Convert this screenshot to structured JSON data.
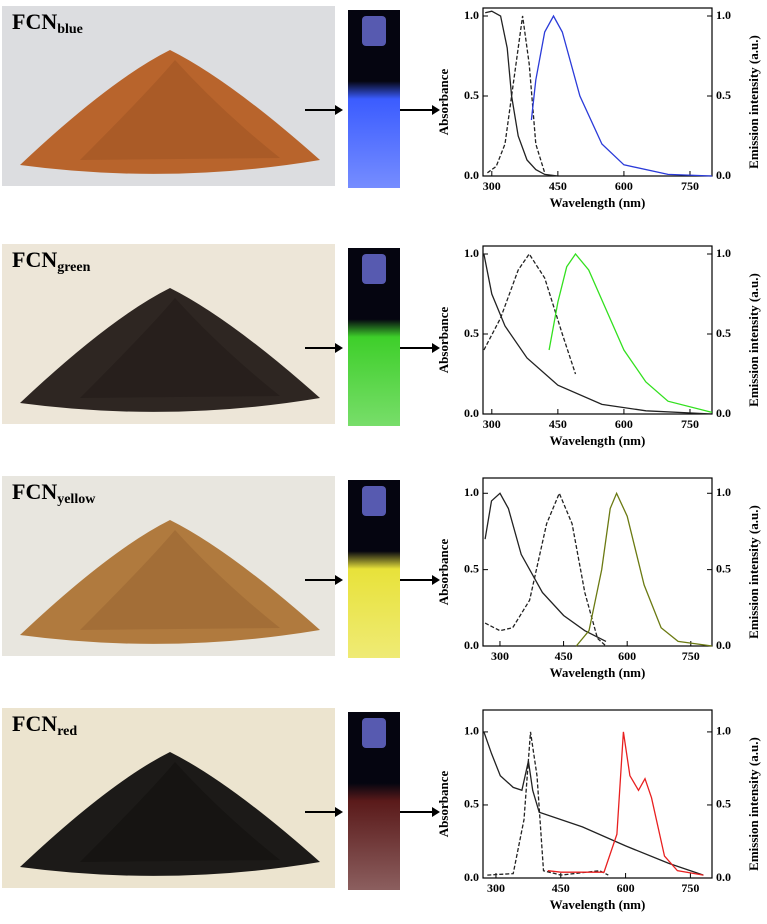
{
  "chart_data": [
    {
      "type": "line",
      "label_main": "FCN",
      "label_sub": "blue",
      "xlabel": "Wavelength (nm)",
      "ylabel": "Absorbance",
      "y2label": "Emission intensity (a.u.)",
      "xlim": [
        280,
        800
      ],
      "xticks": [
        300,
        450,
        600,
        750
      ],
      "ylim": [
        0,
        1.05
      ],
      "yticks": [
        {
          "value": 0,
          "label": "0.0"
        },
        {
          "value": 0.5,
          "label": "0.5"
        },
        {
          "value": 1,
          "label": "1.0"
        }
      ],
      "y2lim": [
        0,
        1.05
      ],
      "y2ticks": [
        {
          "value": 0,
          "label": "0.0"
        },
        {
          "value": 0.5,
          "label": "0.5"
        },
        {
          "value": 1,
          "label": "1.0"
        }
      ],
      "series": [
        {
          "color": "#222222",
          "dash": false,
          "x": [
            285,
            300,
            320,
            335,
            345,
            360,
            380,
            400,
            420,
            450
          ],
          "values": [
            1.02,
            1.03,
            1.0,
            0.8,
            0.5,
            0.25,
            0.1,
            0.04,
            0.01,
            0
          ]
        },
        {
          "color": "#222222",
          "dash": true,
          "axis": "y2",
          "x": [
            290,
            310,
            330,
            350,
            370,
            385,
            400,
            420
          ],
          "values": [
            0.02,
            0.06,
            0.2,
            0.6,
            1.0,
            0.7,
            0.2,
            0.02
          ]
        },
        {
          "color": "#2b3bd9",
          "dash": false,
          "axis": "y2",
          "x": [
            390,
            400,
            420,
            440,
            460,
            500,
            550,
            600,
            700,
            800
          ],
          "values": [
            0.35,
            0.6,
            0.9,
            1.0,
            0.9,
            0.5,
            0.2,
            0.07,
            0.01,
            0
          ]
        }
      ]
    },
    {
      "type": "line",
      "label_main": "FCN",
      "label_sub": "green",
      "xlabel": "Wavelength (nm)",
      "ylabel": "Absorbance",
      "y2label": "Emission intensity (a.u.)",
      "xlim": [
        280,
        800
      ],
      "xticks": [
        300,
        450,
        600,
        750
      ],
      "ylim": [
        0,
        1.05
      ],
      "yticks": [
        {
          "value": 0,
          "label": "0.0"
        },
        {
          "value": 0.5,
          "label": "0.5"
        },
        {
          "value": 1,
          "label": "1.0"
        }
      ],
      "y2lim": [
        0,
        1.05
      ],
      "y2ticks": [
        {
          "value": 0,
          "label": "0.0"
        },
        {
          "value": 0.5,
          "label": "0.5"
        },
        {
          "value": 1,
          "label": "1.0"
        }
      ],
      "series": [
        {
          "color": "#222222",
          "dash": false,
          "x": [
            282,
            300,
            330,
            380,
            450,
            550,
            650,
            800
          ],
          "values": [
            1.0,
            0.75,
            0.55,
            0.35,
            0.18,
            0.06,
            0.02,
            0
          ]
        },
        {
          "color": "#222222",
          "dash": true,
          "axis": "y2",
          "x": [
            282,
            320,
            360,
            385,
            420,
            460,
            490
          ],
          "values": [
            0.4,
            0.6,
            0.9,
            1.0,
            0.85,
            0.5,
            0.25
          ]
        },
        {
          "color": "#33e01f",
          "dash": false,
          "axis": "y2",
          "x": [
            430,
            450,
            470,
            490,
            520,
            560,
            600,
            650,
            700,
            800
          ],
          "values": [
            0.4,
            0.7,
            0.92,
            1.0,
            0.9,
            0.65,
            0.4,
            0.2,
            0.08,
            0.01
          ]
        }
      ]
    },
    {
      "type": "line",
      "label_main": "FCN",
      "label_sub": "yellow",
      "xlabel": "Wavelength (nm)",
      "ylabel": "Absorbance",
      "y2label": "Emission intensity (a.u.)",
      "xlim": [
        260,
        800
      ],
      "xticks": [
        300,
        450,
        600,
        750
      ],
      "ylim": [
        0,
        1.1
      ],
      "yticks": [
        {
          "value": 0,
          "label": "0.0"
        },
        {
          "value": 0.5,
          "label": "0.5"
        },
        {
          "value": 1,
          "label": "1.0"
        }
      ],
      "y2lim": [
        0,
        1.1
      ],
      "y2ticks": [
        {
          "value": 0,
          "label": "0.0"
        },
        {
          "value": 0.5,
          "label": "0.5"
        },
        {
          "value": 1,
          "label": "1.0"
        }
      ],
      "series": [
        {
          "color": "#222222",
          "dash": false,
          "x": [
            265,
            280,
            300,
            320,
            350,
            400,
            450,
            500,
            550
          ],
          "values": [
            0.7,
            0.95,
            1.0,
            0.9,
            0.6,
            0.35,
            0.2,
            0.1,
            0.03
          ]
        },
        {
          "color": "#222222",
          "dash": true,
          "axis": "y2",
          "x": [
            265,
            300,
            330,
            370,
            410,
            440,
            470,
            500,
            530,
            550
          ],
          "values": [
            0.15,
            0.1,
            0.12,
            0.3,
            0.8,
            1.0,
            0.8,
            0.35,
            0.05,
            0
          ]
        },
        {
          "color": "#6b7a12",
          "dash": false,
          "axis": "y2",
          "x": [
            480,
            510,
            540,
            560,
            575,
            600,
            640,
            680,
            720,
            800
          ],
          "values": [
            0,
            0.1,
            0.5,
            0.9,
            1.0,
            0.85,
            0.4,
            0.12,
            0.03,
            0
          ]
        }
      ]
    },
    {
      "type": "line",
      "label_main": "FCN",
      "label_sub": "red",
      "xlabel": "Wavelength (nm)",
      "ylabel": "Absorbance",
      "y2label": "Emission intensity (a.u.)",
      "xlim": [
        270,
        800
      ],
      "xticks": [
        300,
        450,
        600,
        750
      ],
      "ylim": [
        0,
        1.15
      ],
      "yticks": [
        {
          "value": 0,
          "label": "0.0"
        },
        {
          "value": 0.5,
          "label": "0.5"
        },
        {
          "value": 1,
          "label": "1.0"
        }
      ],
      "y2lim": [
        0,
        1.15
      ],
      "y2ticks": [
        {
          "value": 0,
          "label": "0.0"
        },
        {
          "value": 0.5,
          "label": "0.5"
        },
        {
          "value": 1,
          "label": "1.0"
        }
      ],
      "series": [
        {
          "color": "#222222",
          "dash": false,
          "x": [
            272,
            290,
            310,
            340,
            360,
            375,
            385,
            400,
            500,
            600,
            700,
            780
          ],
          "values": [
            1.0,
            0.85,
            0.7,
            0.62,
            0.6,
            0.8,
            0.6,
            0.45,
            0.35,
            0.22,
            0.1,
            0.02
          ]
        },
        {
          "color": "#222222",
          "dash": true,
          "axis": "y2",
          "x": [
            280,
            340,
            365,
            380,
            395,
            410,
            450,
            540,
            560
          ],
          "values": [
            0.02,
            0.03,
            0.4,
            1.0,
            0.7,
            0.05,
            0.02,
            0.05,
            0.02
          ]
        },
        {
          "color": "#e82020",
          "dash": false,
          "axis": "y2",
          "x": [
            420,
            450,
            550,
            580,
            595,
            610,
            630,
            645,
            660,
            690,
            720,
            780
          ],
          "values": [
            0.05,
            0.04,
            0.04,
            0.3,
            1.0,
            0.7,
            0.6,
            0.68,
            0.55,
            0.15,
            0.05,
            0.02
          ]
        }
      ]
    }
  ]
}
